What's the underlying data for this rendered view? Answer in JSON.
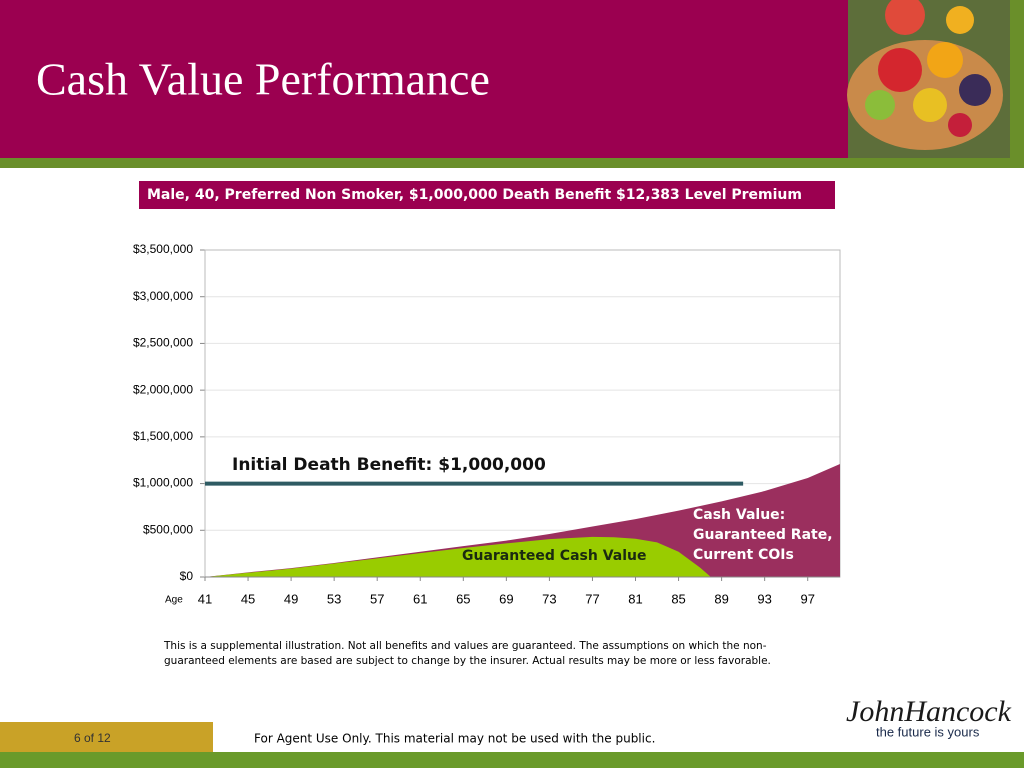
{
  "slide": {
    "title": "Cash Value Performance",
    "subtitle": "Male, 40, Preferred Non Smoker, $1,000,000 Death Benefit $12,383 Level Premium",
    "disclaimer": [
      "This is a supplemental illustration.  Not all benefits and values are guaranteed.  The assumptions on which the non-",
      "guaranteed elements are based are subject to change by the insurer.  Actual results may be more or less favorable."
    ],
    "page": "6 of 12",
    "footer": "For Agent  Use Only.  This material may not be used with the public.",
    "logo": "JohnHancock",
    "tagline": "the future is yours"
  },
  "chart_data": {
    "type": "area",
    "xlabel": "Age",
    "xlim": [
      41,
      100
    ],
    "xticks": [
      41,
      45,
      49,
      53,
      57,
      61,
      65,
      69,
      73,
      77,
      81,
      85,
      89,
      93,
      97
    ],
    "ylim": [
      0,
      3500000
    ],
    "yticks": [
      {
        "value": 0,
        "label": "$0"
      },
      {
        "value": 500000,
        "label": "$500,000"
      },
      {
        "value": 1000000,
        "label": "$1,000,000"
      },
      {
        "value": 1500000,
        "label": "$1,500,000"
      },
      {
        "value": 2000000,
        "label": "$2,000,000"
      },
      {
        "value": 2500000,
        "label": "$2,500,000"
      },
      {
        "value": 3000000,
        "label": "$3,000,000"
      },
      {
        "value": 3500000,
        "label": "$3,500,000"
      }
    ],
    "grid": true,
    "series": [
      {
        "name": "Cash Value: Guaranteed Rate, Current COIs",
        "name_lines": [
          "Cash Value:",
          "Guaranteed Rate,",
          "Current COIs"
        ],
        "color": "#9b2f5e",
        "kind": "area",
        "x": [
          41,
          45,
          49,
          53,
          57,
          61,
          65,
          69,
          73,
          77,
          81,
          85,
          89,
          93,
          97,
          100
        ],
        "values": [
          0,
          50000,
          95000,
          150000,
          210000,
          270000,
          330000,
          390000,
          460000,
          540000,
          620000,
          710000,
          810000,
          920000,
          1060000,
          1210000
        ]
      },
      {
        "name": "Guaranteed Cash Value",
        "color": "#99cc00",
        "kind": "area",
        "x": [
          41,
          45,
          49,
          53,
          57,
          61,
          65,
          69,
          73,
          77,
          79,
          81,
          83,
          85,
          87,
          88
        ],
        "values": [
          0,
          45000,
          90000,
          145000,
          200000,
          255000,
          310000,
          360000,
          405000,
          430000,
          425000,
          410000,
          370000,
          270000,
          100000,
          0
        ]
      },
      {
        "name": "Initial Death Benefit: $1,000,000",
        "color": "#2e5b63",
        "kind": "line",
        "x": [
          41,
          91
        ],
        "values": [
          1000000,
          1000000
        ]
      }
    ]
  }
}
